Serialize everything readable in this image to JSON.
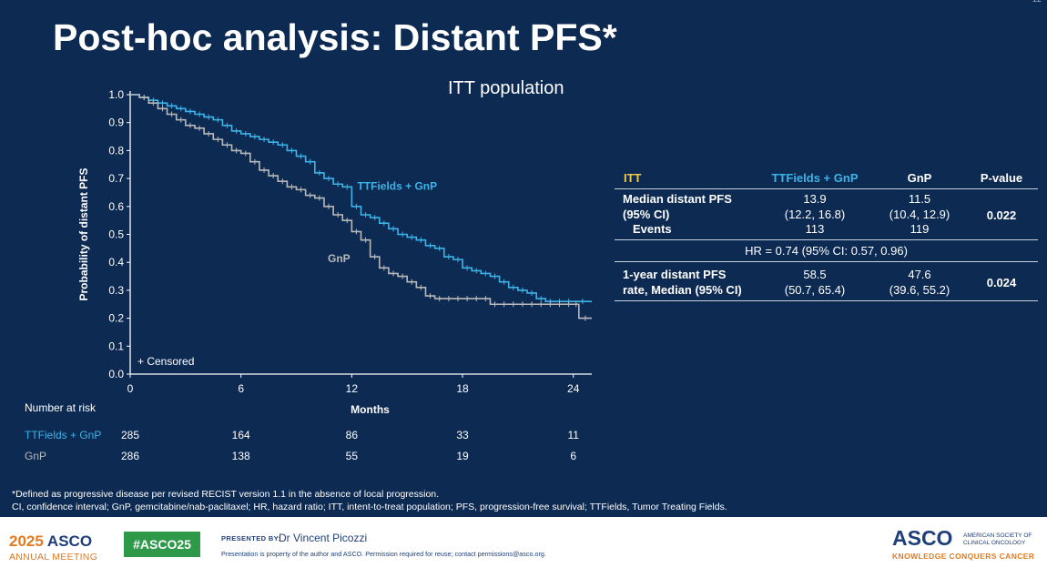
{
  "slide": {
    "title": "Post-hoc analysis: Distant PFS*",
    "subtitle": "ITT population",
    "slide_number": "12"
  },
  "colors": {
    "background": "#0d2a52",
    "ttfields": "#3db4e8",
    "gnp": "#b9b9b9",
    "itt_header": "#f2c94c",
    "asco_green": "#2e9a49",
    "asco_orange": "#e07b22",
    "asco_blue": "#1e3f7a"
  },
  "chart_data": {
    "type": "line",
    "xlabel": "Months",
    "ylabel": "Probability of distant PFS",
    "xlim": [
      0,
      25
    ],
    "ylim": [
      0,
      1.0
    ],
    "xticks": [
      0,
      6,
      12,
      18,
      24
    ],
    "yticks": [
      "0.0",
      "0.1",
      "0.2",
      "0.3",
      "0.4",
      "0.5",
      "0.6",
      "0.7",
      "0.8",
      "0.9",
      "1.0"
    ],
    "censor_note": "+ Censored",
    "series": [
      {
        "name": "TTFields + GnP",
        "x": [
          0,
          0.5,
          1,
          1.5,
          2,
          2.5,
          3,
          3.5,
          4,
          4.5,
          5,
          5.5,
          6,
          6.5,
          7,
          7.5,
          8,
          8.5,
          9,
          9.5,
          10,
          10.5,
          11,
          11.5,
          12,
          12.5,
          13,
          13.5,
          14,
          14.5,
          15,
          15.5,
          16,
          16.5,
          17,
          17.5,
          18,
          18.5,
          19,
          19.5,
          20,
          20.5,
          21,
          21.5,
          22,
          22.5,
          23,
          23.5,
          24,
          25
        ],
        "y": [
          1.0,
          0.99,
          0.98,
          0.97,
          0.96,
          0.95,
          0.94,
          0.93,
          0.92,
          0.91,
          0.89,
          0.87,
          0.86,
          0.85,
          0.84,
          0.83,
          0.82,
          0.8,
          0.78,
          0.76,
          0.72,
          0.7,
          0.68,
          0.67,
          0.6,
          0.57,
          0.56,
          0.54,
          0.52,
          0.5,
          0.49,
          0.48,
          0.46,
          0.45,
          0.42,
          0.41,
          0.38,
          0.37,
          0.36,
          0.35,
          0.33,
          0.31,
          0.3,
          0.29,
          0.27,
          0.26,
          0.26,
          0.26,
          0.26,
          0.26
        ]
      },
      {
        "name": "GnP",
        "x": [
          0,
          0.5,
          1,
          1.5,
          2,
          2.5,
          3,
          3.5,
          4,
          4.5,
          5,
          5.5,
          6,
          6.5,
          7,
          7.5,
          8,
          8.5,
          9,
          9.5,
          10,
          10.5,
          11,
          11.5,
          12,
          12.5,
          13,
          13.5,
          14,
          14.5,
          15,
          15.5,
          16,
          16.5,
          17,
          17.5,
          18,
          18.5,
          19,
          19.5,
          20,
          20.5,
          21,
          21.5,
          22,
          22.5,
          23,
          23.5,
          24,
          24.3,
          25
        ],
        "y": [
          1.0,
          0.99,
          0.97,
          0.95,
          0.93,
          0.91,
          0.89,
          0.88,
          0.86,
          0.84,
          0.82,
          0.8,
          0.79,
          0.76,
          0.73,
          0.71,
          0.69,
          0.67,
          0.66,
          0.64,
          0.63,
          0.6,
          0.57,
          0.55,
          0.51,
          0.48,
          0.42,
          0.38,
          0.36,
          0.35,
          0.33,
          0.31,
          0.28,
          0.27,
          0.27,
          0.27,
          0.27,
          0.27,
          0.27,
          0.25,
          0.25,
          0.25,
          0.25,
          0.25,
          0.25,
          0.25,
          0.25,
          0.25,
          0.25,
          0.2,
          0.2
        ]
      }
    ],
    "annotations": [
      {
        "text": "TTFields + GnP",
        "x": 12.3,
        "y": 0.66
      },
      {
        "text": "GnP",
        "x": 10.7,
        "y": 0.4
      }
    ]
  },
  "risk_table": {
    "header": "Number at risk",
    "timepoints": [
      0,
      6,
      12,
      18,
      24
    ],
    "rows": [
      {
        "label": "TTFields + GnP",
        "values": [
          "285",
          "164",
          "86",
          "33",
          "11"
        ]
      },
      {
        "label": "GnP",
        "values": [
          "286",
          "138",
          "55",
          "19",
          "6"
        ]
      }
    ]
  },
  "results_table": {
    "headers": [
      "ITT",
      "TTFields + GnP",
      "GnP",
      "P-value"
    ],
    "median_label_1": "Median distant PFS",
    "median_label_2": "(95% CI)",
    "events_label": "Events",
    "median_tt": "13.9",
    "median_tt_ci": "(12.2, 16.8)",
    "events_tt": "113",
    "median_gnp": "11.5",
    "median_gnp_ci": "(10.4, 12.9)",
    "events_gnp": "119",
    "median_p": "0.022",
    "hr": "HR = 0.74 (95% CI: 0.57, 0.96)",
    "rate_label_1": "1-year distant PFS",
    "rate_label_2": "rate, Median (95% CI)",
    "rate_tt": "58.5",
    "rate_tt_ci": "(50.7, 65.4)",
    "rate_gnp": "47.6",
    "rate_gnp_ci": "(39.6, 55.2)",
    "rate_p": "0.024"
  },
  "footnotes": [
    "*Defined as progressive disease per revised RECIST version 1.1 in the absence of local progression.",
    "CI, confidence interval; GnP, gemcitabine/nab-paclitaxel; HR, hazard ratio; ITT, intent-to-treat population; PFS, progression-free survival; TTFields, Tumor Treating Fields."
  ],
  "footer": {
    "year": "2025",
    "asco": "ASCO",
    "annual_meeting": "ANNUAL MEETING",
    "hashtag": "#ASCO25",
    "presented_by": "PRESENTED BY:",
    "presenter": "Dr Vincent Picozzi",
    "property_note": "Presentation is property of the author and ASCO. Permission required for reuse; contact permissions@asco.org.",
    "asco_logo": "ASCO",
    "asco_society": "AMERICAN SOCIETY OF CLINICAL ONCOLOGY",
    "tagline": "KNOWLEDGE CONQUERS CANCER"
  }
}
